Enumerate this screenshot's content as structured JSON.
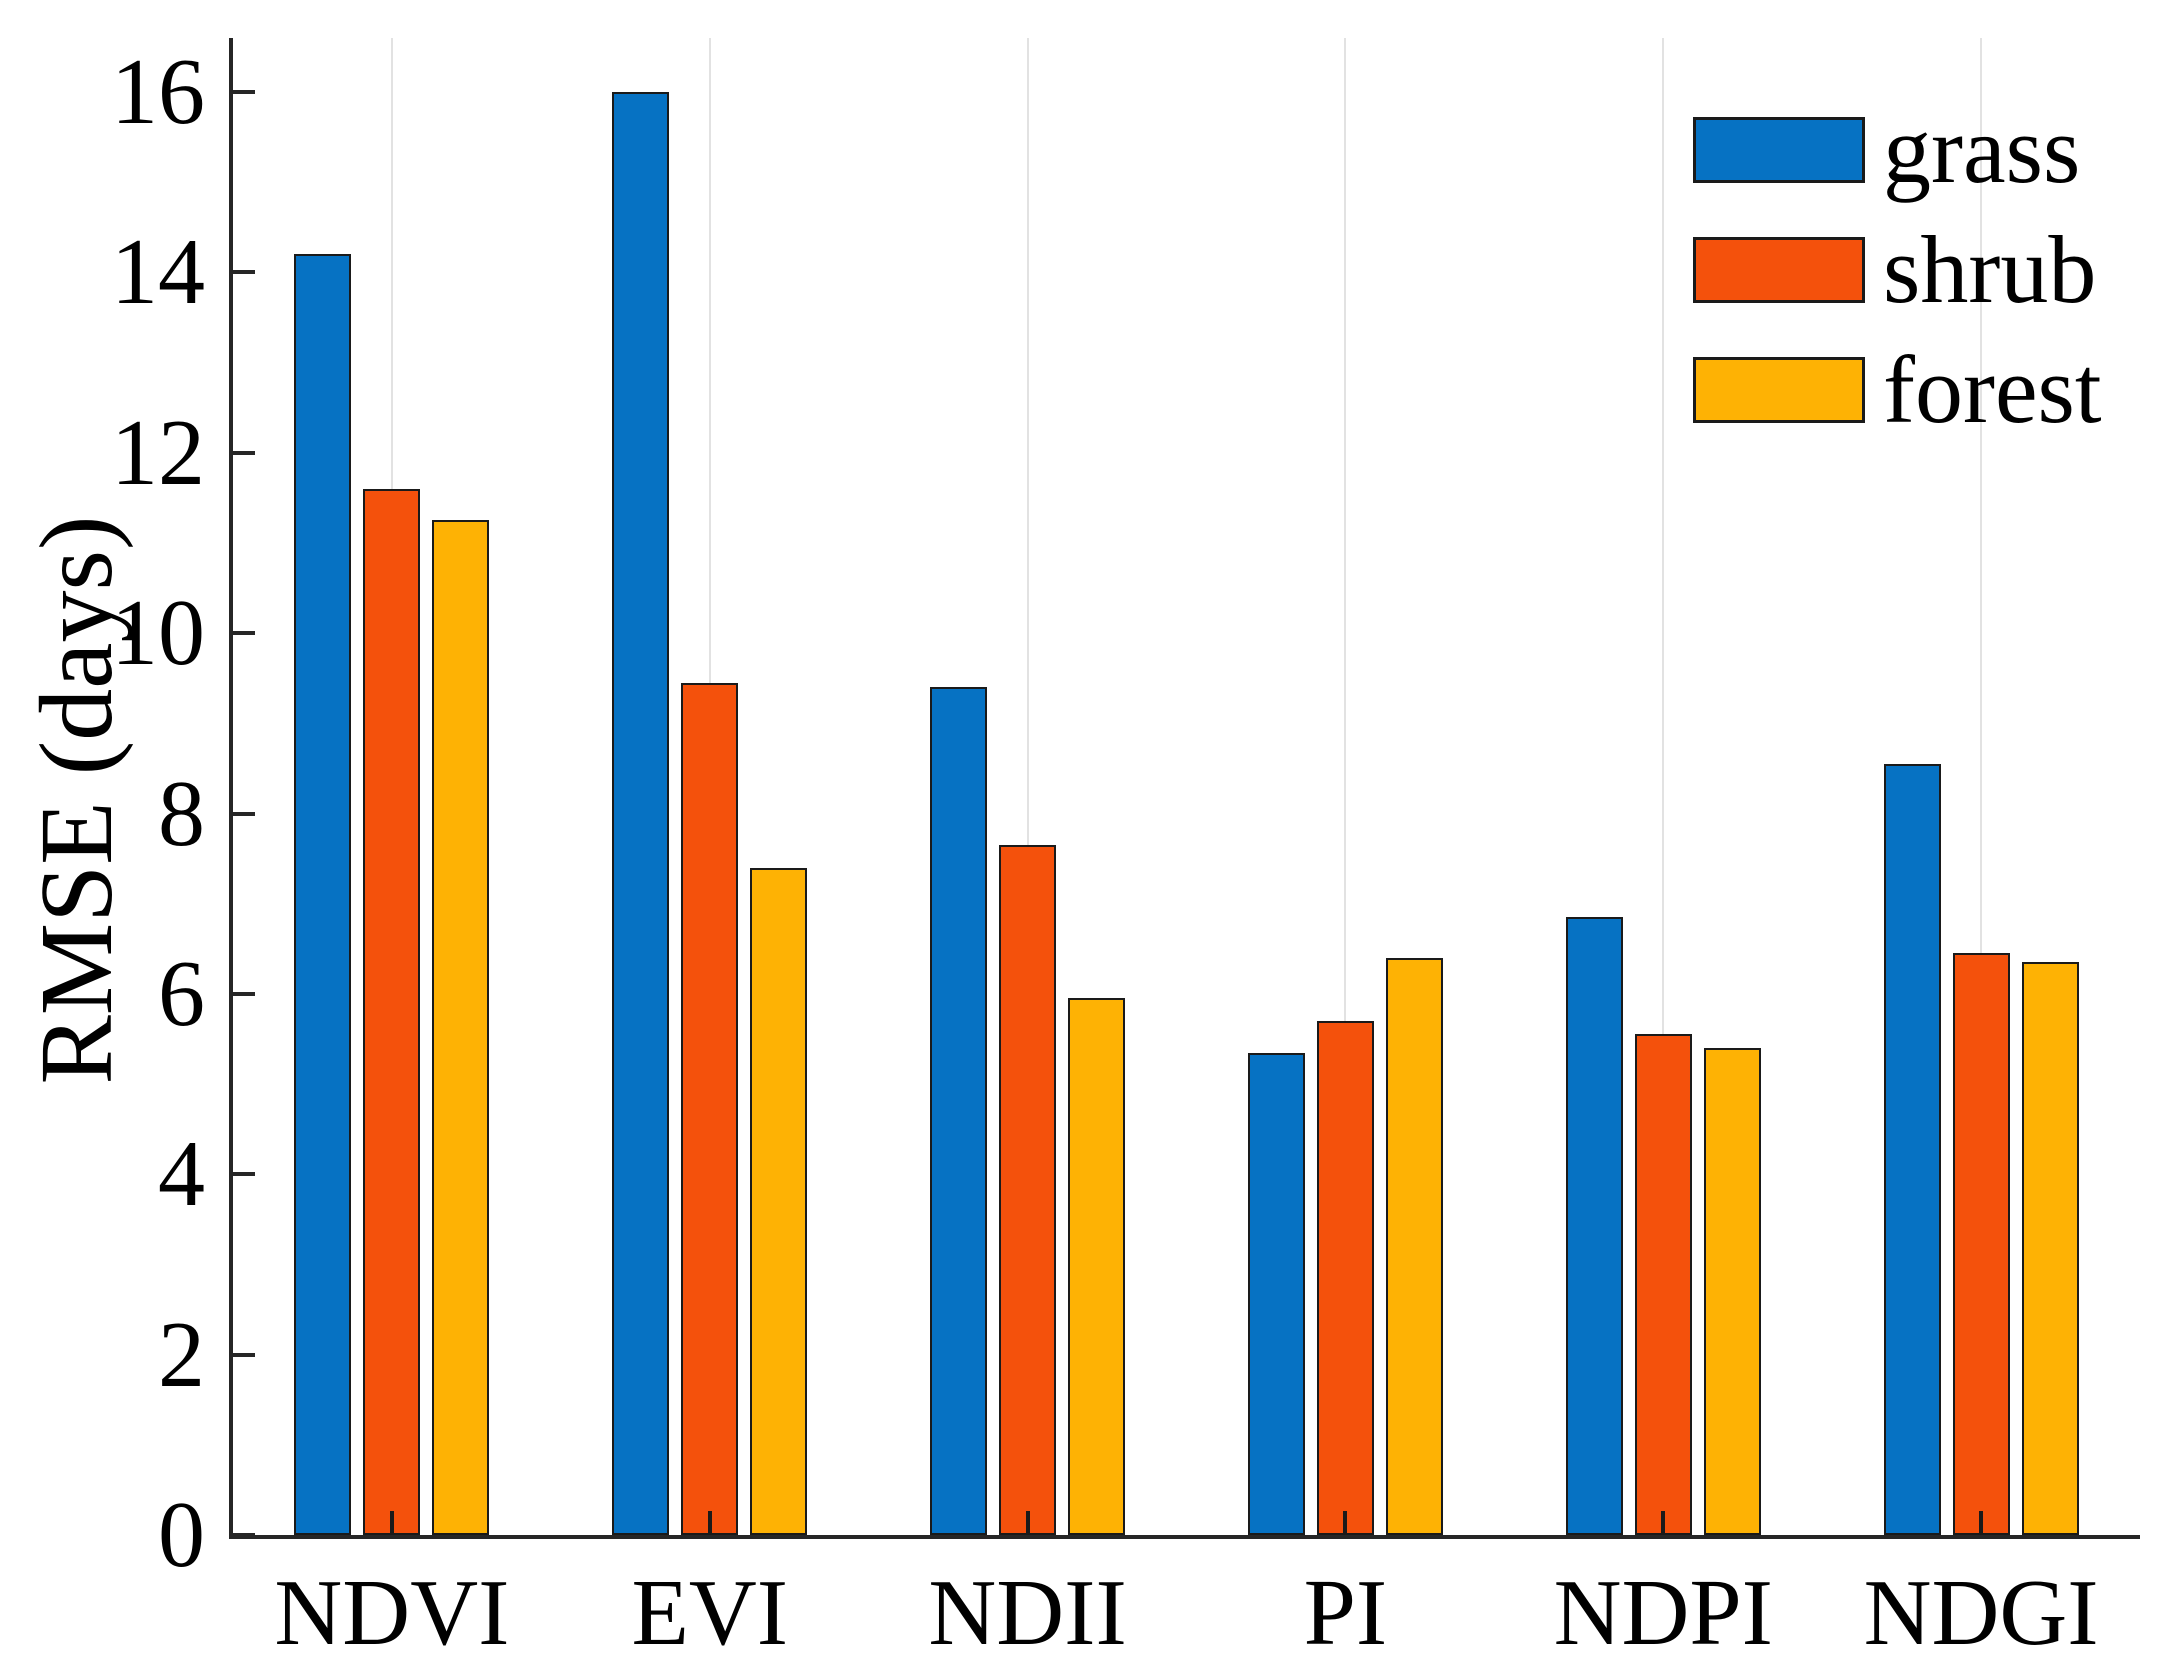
{
  "chart_data": {
    "type": "bar",
    "title": "",
    "xlabel": "",
    "ylabel": "RMSE (days)",
    "categories": [
      "NDVI",
      "EVI",
      "NDII",
      "PI",
      "NDPI",
      "NDGI"
    ],
    "series": [
      {
        "name": "grass",
        "color": "#0672c3",
        "values": [
          14.2,
          16.0,
          9.4,
          5.35,
          6.85,
          8.55
        ]
      },
      {
        "name": "shrub",
        "color": "#f4510c",
        "values": [
          11.6,
          9.45,
          7.65,
          5.7,
          5.55,
          6.45
        ]
      },
      {
        "name": "forest",
        "color": "#feb204",
        "values": [
          11.25,
          7.4,
          5.95,
          6.4,
          5.4,
          6.35
        ]
      }
    ],
    "ylim": [
      0,
      16.6
    ],
    "yticks": [
      0,
      2,
      4,
      6,
      8,
      10,
      12,
      14,
      16
    ],
    "grid": "vertical gridline at each category center",
    "legend_position": "top-right inside plot, no border",
    "bar_edge_color": "#1a1a1a",
    "axis_color": "#262626",
    "gridline_color": "#e2e2e2"
  }
}
